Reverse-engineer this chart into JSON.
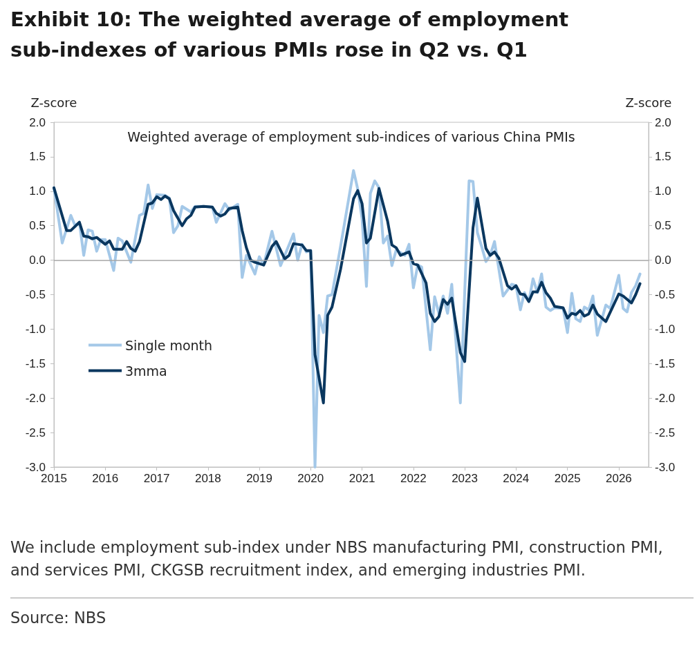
{
  "chart_data": {
    "type": "line",
    "title": "Exhibit 10: The weighted average of employment sub-indexes of various PMIs rose in Q2 vs. Q1",
    "subtitle": "Weighted average of employment sub-indices of various China PMIs",
    "ylabel": "Z-score",
    "y2label": "Z-score",
    "annotations": [
      "We include employment sub-index under NBS manufacturing PMI, construction PMI, and services PMI, CKGSB recruitment index, and emerging industries PMI.",
      "Source: NBS"
    ],
    "xlim": [
      "2015-01",
      "2026-08"
    ],
    "xticks": [
      "2015",
      "2016",
      "2017",
      "2018",
      "2019",
      "2020",
      "2021",
      "2022",
      "2023",
      "2024",
      "2025",
      "2026"
    ],
    "ylim": [
      -3,
      2
    ],
    "yticks": [
      {
        "value": -3,
        "label": "-3.0"
      },
      {
        "value": -2.5,
        "label": "-2.5"
      },
      {
        "value": -2,
        "label": "-2.0"
      },
      {
        "value": -1.5,
        "label": "-1.5"
      },
      {
        "value": -1,
        "label": "-1.0"
      },
      {
        "value": -0.5,
        "label": "-0.5"
      },
      {
        "value": 0,
        "label": "0.0"
      },
      {
        "value": 0.5,
        "label": "0.5"
      },
      {
        "value": 1,
        "label": "1.0"
      },
      {
        "value": 1.5,
        "label": "1.5"
      },
      {
        "value": 2,
        "label": "2.0"
      }
    ],
    "y2lim": [
      -3,
      2
    ],
    "y2ticks": [
      {
        "value": -3,
        "label": "-3.0"
      },
      {
        "value": -2.5,
        "label": "-2.5"
      },
      {
        "value": -2,
        "label": "-2.0"
      },
      {
        "value": -1.5,
        "label": "-1.5"
      },
      {
        "value": -1,
        "label": "-1.0"
      },
      {
        "value": -0.5,
        "label": "-0.5"
      },
      {
        "value": 0,
        "label": "0.0"
      },
      {
        "value": 0.5,
        "label": "0.5"
      },
      {
        "value": 1,
        "label": "1.0"
      },
      {
        "value": 1.5,
        "label": "1.5"
      },
      {
        "value": 2,
        "label": "2.0"
      }
    ],
    "ref_lines": [
      {
        "axis": "y",
        "value": 0,
        "color": "#a6a6a6"
      }
    ],
    "legend": "bottom left",
    "marker": "none",
    "series": [
      {
        "name": "Single month",
        "color": "#a4c8e8",
        "x": [
          "2015-01",
          "2015-03",
          "2015-05",
          "2015-06",
          "2015-07",
          "2015-08",
          "2015-09",
          "2015-10",
          "2015-11",
          "2015-12",
          "2016-01",
          "2016-03",
          "2016-04",
          "2016-05",
          "2016-07",
          "2016-09",
          "2016-10",
          "2016-11",
          "2016-12",
          "2017-01",
          "2017-03",
          "2017-04",
          "2017-05",
          "2017-06",
          "2017-07",
          "2017-09",
          "2017-10",
          "2017-12",
          "2018-02",
          "2018-03",
          "2018-05",
          "2018-06",
          "2018-08",
          "2018-09",
          "2018-10",
          "2018-12",
          "2019-01",
          "2019-02",
          "2019-04",
          "2019-06",
          "2019-09",
          "2019-10",
          "2019-11",
          "2019-12",
          "2020-01",
          "2020-02",
          "2020-03",
          "2020-04",
          "2020-05",
          "2020-06",
          "2020-08",
          "2020-11",
          "2020-12",
          "2021-01",
          "2021-02",
          "2021-03",
          "2021-04",
          "2021-05",
          "2021-06",
          "2021-07",
          "2021-08",
          "2021-09",
          "2021-11",
          "2021-12",
          "2022-01",
          "2022-02",
          "2022-03",
          "2022-05",
          "2022-06",
          "2022-07",
          "2022-08",
          "2022-09",
          "2022-10",
          "2022-12",
          "2023-02",
          "2023-03",
          "2023-04",
          "2023-05",
          "2023-06",
          "2023-07",
          "2023-08",
          "2023-10",
          "2023-12",
          "2024-01",
          "2024-02",
          "2024-03",
          "2024-04",
          "2024-05",
          "2024-06",
          "2024-07",
          "2024-08",
          "2024-09",
          "2024-10",
          "2024-12",
          "2025-01",
          "2025-02",
          "2025-03",
          "2025-04",
          "2025-05",
          "2025-06",
          "2025-07",
          "2025-08",
          "2025-10",
          "2025-11",
          "2026-01",
          "2026-02",
          "2026-03",
          "2026-04",
          "2026-05",
          "2026-06"
        ],
        "values": [
          1.05,
          0.25,
          0.65,
          0.5,
          0.55,
          0.07,
          0.44,
          0.42,
          0.13,
          0.3,
          0.3,
          -0.15,
          0.32,
          0.28,
          -0.03,
          0.65,
          0.68,
          1.09,
          0.75,
          0.95,
          0.94,
          0.9,
          0.4,
          0.5,
          0.78,
          0.7,
          0.78,
          0.78,
          0.77,
          0.55,
          0.82,
          0.73,
          0.81,
          -0.25,
          0.07,
          -0.2,
          0.05,
          -0.07,
          0.42,
          -0.08,
          0.38,
          0.0,
          0.23,
          0.12,
          0.14,
          -3.0,
          -0.8,
          -1.05,
          -0.52,
          -0.5,
          0.2,
          1.3,
          1.03,
          0.6,
          -0.38,
          0.97,
          1.15,
          1.05,
          0.25,
          0.35,
          -0.08,
          0.15,
          0.07,
          0.23,
          -0.4,
          -0.07,
          -0.1,
          -1.3,
          -0.53,
          -0.77,
          -0.52,
          -0.77,
          -0.35,
          -2.07,
          1.15,
          1.14,
          0.4,
          0.2,
          -0.02,
          0.07,
          0.27,
          -0.52,
          -0.35,
          -0.37,
          -0.72,
          -0.47,
          -0.6,
          -0.27,
          -0.47,
          -0.2,
          -0.68,
          -0.73,
          -0.69,
          -0.7,
          -1.05,
          -0.48,
          -0.85,
          -0.89,
          -0.68,
          -0.72,
          -0.52,
          -1.09,
          -0.65,
          -0.7,
          -0.22,
          -0.7,
          -0.75,
          -0.47,
          -0.37,
          -0.2
        ]
      },
      {
        "name": "3mma",
        "color": "#0a375f",
        "x": [
          "2015-01",
          "2015-04",
          "2015-05",
          "2015-07",
          "2015-08",
          "2015-09",
          "2015-10",
          "2015-11",
          "2015-12",
          "2016-01",
          "2016-02",
          "2016-03",
          "2016-05",
          "2016-06",
          "2016-07",
          "2016-08",
          "2016-09",
          "2016-11",
          "2016-12",
          "2017-01",
          "2017-02",
          "2017-03",
          "2017-04",
          "2017-05",
          "2017-07",
          "2017-08",
          "2017-09",
          "2017-10",
          "2017-12",
          "2018-02",
          "2018-03",
          "2018-04",
          "2018-05",
          "2018-06",
          "2018-08",
          "2018-09",
          "2018-10",
          "2018-11",
          "2018-12",
          "2019-02",
          "2019-04",
          "2019-05",
          "2019-07",
          "2019-08",
          "2019-09",
          "2019-11",
          "2019-12",
          "2020-01",
          "2020-02",
          "2020-04",
          "2020-05",
          "2020-06",
          "2020-08",
          "2020-11",
          "2020-12",
          "2021-01",
          "2021-02",
          "2021-03",
          "2021-05",
          "2021-07",
          "2021-08",
          "2021-09",
          "2021-10",
          "2021-12",
          "2022-01",
          "2022-02",
          "2022-04",
          "2022-05",
          "2022-06",
          "2022-07",
          "2022-08",
          "2022-09",
          "2022-10",
          "2022-12",
          "2023-01",
          "2023-03",
          "2023-04",
          "2023-06",
          "2023-07",
          "2023-08",
          "2023-09",
          "2023-11",
          "2023-12",
          "2024-01",
          "2024-02",
          "2024-03",
          "2024-04",
          "2024-05",
          "2024-06",
          "2024-07",
          "2024-08",
          "2024-09",
          "2024-10",
          "2024-12",
          "2025-01",
          "2025-02",
          "2025-03",
          "2025-04",
          "2025-05",
          "2025-06",
          "2025-07",
          "2025-08",
          "2025-10",
          "2026-01",
          "2026-02",
          "2026-04",
          "2026-05",
          "2026-06"
        ],
        "values": [
          1.05,
          0.43,
          0.43,
          0.55,
          0.35,
          0.34,
          0.31,
          0.33,
          0.28,
          0.23,
          0.28,
          0.16,
          0.16,
          0.27,
          0.17,
          0.13,
          0.27,
          0.81,
          0.83,
          0.92,
          0.88,
          0.93,
          0.89,
          0.72,
          0.5,
          0.6,
          0.65,
          0.77,
          0.78,
          0.77,
          0.68,
          0.64,
          0.67,
          0.75,
          0.77,
          0.43,
          0.18,
          0.0,
          -0.03,
          -0.07,
          0.2,
          0.27,
          0.02,
          0.07,
          0.24,
          0.22,
          0.14,
          0.14,
          -1.37,
          -2.07,
          -0.8,
          -0.68,
          -0.13,
          0.89,
          1.01,
          0.82,
          0.25,
          0.32,
          1.04,
          0.57,
          0.22,
          0.18,
          0.07,
          0.12,
          -0.05,
          -0.07,
          -0.33,
          -0.77,
          -0.89,
          -0.82,
          -0.57,
          -0.64,
          -0.55,
          -1.34,
          -1.47,
          0.47,
          0.9,
          0.17,
          0.07,
          0.12,
          0.03,
          -0.37,
          -0.42,
          -0.37,
          -0.49,
          -0.5,
          -0.6,
          -0.46,
          -0.46,
          -0.32,
          -0.47,
          -0.55,
          -0.67,
          -0.69,
          -0.84,
          -0.77,
          -0.79,
          -0.73,
          -0.81,
          -0.78,
          -0.65,
          -0.78,
          -0.89,
          -0.49,
          -0.52,
          -0.62,
          -0.5,
          -0.34
        ]
      }
    ]
  }
}
